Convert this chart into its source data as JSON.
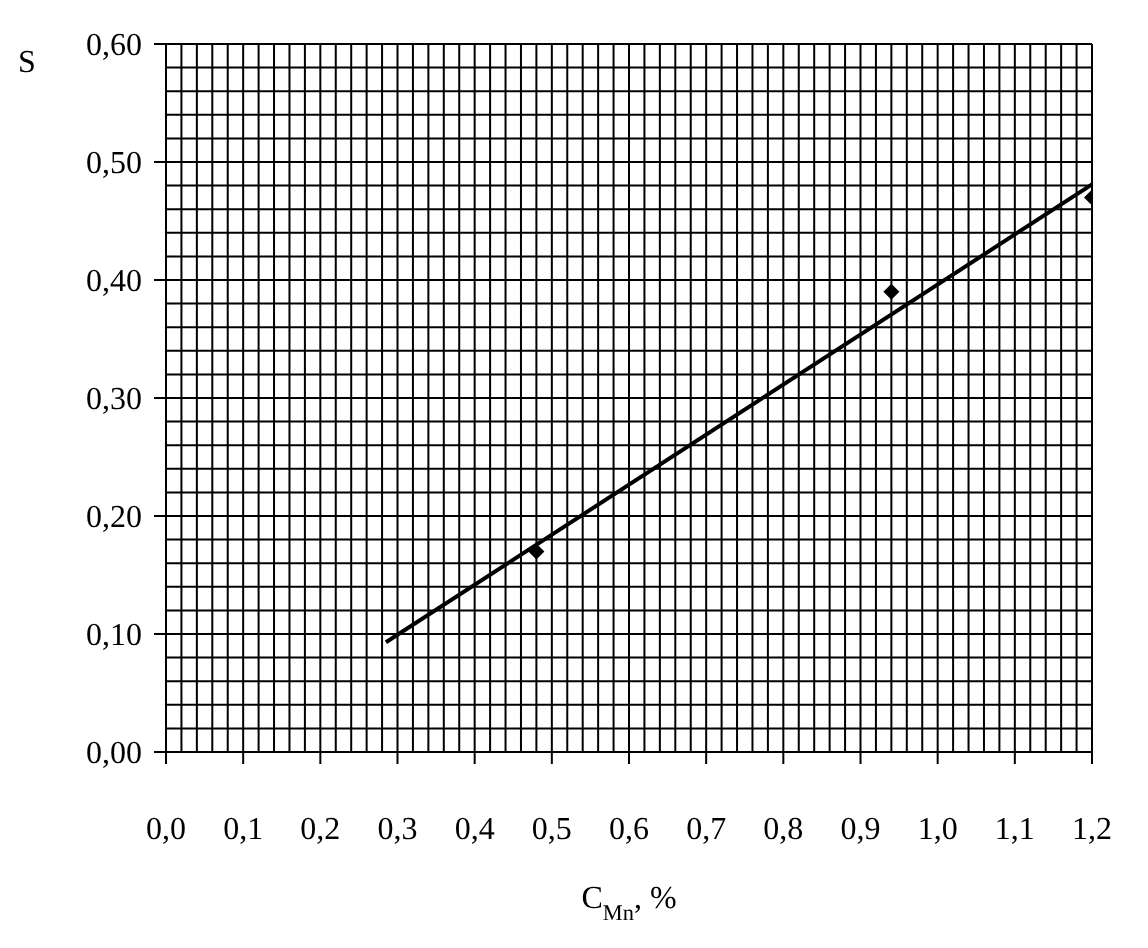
{
  "chart_data": {
    "type": "scatter",
    "xlabel": "C$_{Mn}$, %",
    "ylabel": "S",
    "xlim": [
      0,
      1.2
    ],
    "ylim": [
      0,
      0.6
    ],
    "xticks": [
      {
        "value": 0,
        "label": "0,0"
      },
      {
        "value": 0.1,
        "label": "0,1"
      },
      {
        "value": 0.2,
        "label": "0,2"
      },
      {
        "value": 0.3,
        "label": "0,3"
      },
      {
        "value": 0.4,
        "label": "0,4"
      },
      {
        "value": 0.5,
        "label": "0,5"
      },
      {
        "value": 0.6,
        "label": "0,6"
      },
      {
        "value": 0.7,
        "label": "0,7"
      },
      {
        "value": 0.8,
        "label": "0,8"
      },
      {
        "value": 0.9,
        "label": "0,9"
      },
      {
        "value": 1.0,
        "label": "1,0"
      },
      {
        "value": 1.1,
        "label": "1,1"
      },
      {
        "value": 1.2,
        "label": "1,2"
      }
    ],
    "yticks": [
      {
        "value": 0,
        "label": "0,00"
      },
      {
        "value": 0.1,
        "label": "0,10"
      },
      {
        "value": 0.2,
        "label": "0,20"
      },
      {
        "value": 0.3,
        "label": "0,30"
      },
      {
        "value": 0.4,
        "label": "0,40"
      },
      {
        "value": 0.5,
        "label": "0,50"
      },
      {
        "value": 0.6,
        "label": "0,60"
      }
    ],
    "grid": true,
    "marker": "diamond",
    "series": [
      {
        "color": "#000000",
        "x": [
          0.48,
          0.94,
          1.2
        ],
        "values": [
          0.17,
          0.39,
          0.47
        ]
      },
      {
        "type": "line",
        "color": "#000000",
        "marker": "none",
        "line_style": "solid",
        "x": [
          0.285,
          1.2
        ],
        "values": [
          0.093,
          0.481
        ]
      }
    ]
  }
}
